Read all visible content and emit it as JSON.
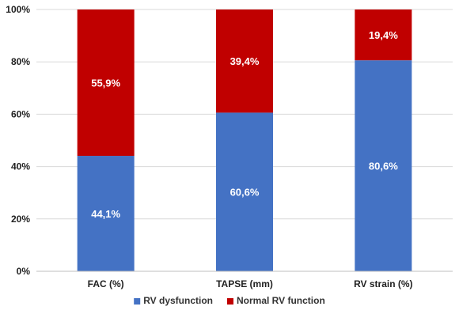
{
  "chart_data": {
    "type": "bar",
    "stacked": true,
    "categories": [
      "FAC (%)",
      "TAPSE (mm)",
      "RV strain (%)"
    ],
    "series": [
      {
        "name": "RV dysfunction",
        "values": [
          44.1,
          60.6,
          80.6
        ],
        "labels": [
          "44,1%",
          "60,6%",
          "80,6%"
        ],
        "color": "#4472C4"
      },
      {
        "name": "Normal RV function",
        "values": [
          55.9,
          39.4,
          19.4
        ],
        "labels": [
          "55,9%",
          "39,4%",
          "19,4%"
        ],
        "color": "#C00000"
      }
    ],
    "ylim": [
      0,
      100
    ],
    "yticks": [
      0,
      20,
      40,
      60,
      80,
      100
    ],
    "ytick_labels": [
      "0%",
      "20%",
      "40%",
      "60%",
      "80%",
      "100%"
    ],
    "grid": true,
    "legend_position": "bottom",
    "title": "",
    "xlabel": "",
    "ylabel": ""
  },
  "colors": {
    "grid": "#d9d9d9",
    "axis": "#bfbfbf"
  }
}
